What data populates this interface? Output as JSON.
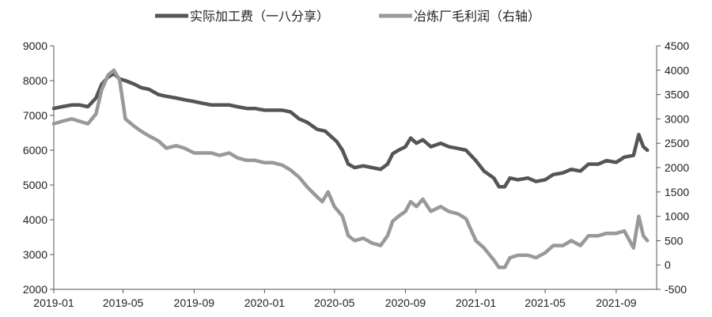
{
  "chart_data": {
    "type": "line",
    "title": "",
    "xlabel": "",
    "ylabel": "",
    "y_left_lim": [
      2000,
      9000
    ],
    "y_right_lim": [
      -500,
      4500
    ],
    "y_left_ticks": [
      "9000",
      "8000",
      "7000",
      "6000",
      "5000",
      "4000",
      "3000",
      "2000"
    ],
    "y_right_ticks": [
      "4500",
      "4000",
      "3500",
      "3000",
      "2500",
      "2000",
      "1500",
      "1000",
      "500",
      "0",
      "-500"
    ],
    "x_ticks": [
      "2019-01",
      "2019-05",
      "2019-09",
      "2020-01",
      "2020-05",
      "2020-09",
      "2021-01",
      "2021-05",
      "2021-09"
    ],
    "legend_position": "top",
    "grid": false,
    "series": [
      {
        "name": "实际加工费（一八分享）",
        "axis": "left",
        "color": "#555555",
        "points": [
          [
            "2019-01-01",
            7200
          ],
          [
            "2019-01-15",
            7250
          ],
          [
            "2019-02-01",
            7300
          ],
          [
            "2019-02-15",
            7300
          ],
          [
            "2019-03-01",
            7250
          ],
          [
            "2019-03-15",
            7500
          ],
          [
            "2019-03-25",
            7900
          ],
          [
            "2019-04-05",
            8100
          ],
          [
            "2019-04-15",
            8200
          ],
          [
            "2019-04-25",
            8050
          ],
          [
            "2019-05-05",
            8000
          ],
          [
            "2019-05-20",
            7900
          ],
          [
            "2019-06-01",
            7800
          ],
          [
            "2019-06-15",
            7750
          ],
          [
            "2019-07-01",
            7600
          ],
          [
            "2019-07-15",
            7550
          ],
          [
            "2019-08-01",
            7500
          ],
          [
            "2019-08-15",
            7450
          ],
          [
            "2019-09-01",
            7400
          ],
          [
            "2019-09-15",
            7350
          ],
          [
            "2019-10-01",
            7300
          ],
          [
            "2019-10-15",
            7300
          ],
          [
            "2019-11-01",
            7300
          ],
          [
            "2019-11-15",
            7250
          ],
          [
            "2019-12-01",
            7200
          ],
          [
            "2019-12-15",
            7200
          ],
          [
            "2020-01-01",
            7150
          ],
          [
            "2020-01-15",
            7150
          ],
          [
            "2020-02-01",
            7150
          ],
          [
            "2020-02-15",
            7100
          ],
          [
            "2020-03-01",
            6900
          ],
          [
            "2020-03-15",
            6800
          ],
          [
            "2020-04-01",
            6600
          ],
          [
            "2020-04-15",
            6550
          ],
          [
            "2020-04-25",
            6400
          ],
          [
            "2020-05-05",
            6250
          ],
          [
            "2020-05-15",
            6000
          ],
          [
            "2020-05-25",
            5600
          ],
          [
            "2020-06-05",
            5500
          ],
          [
            "2020-06-20",
            5550
          ],
          [
            "2020-07-05",
            5500
          ],
          [
            "2020-07-20",
            5450
          ],
          [
            "2020-08-01",
            5600
          ],
          [
            "2020-08-10",
            5900
          ],
          [
            "2020-08-20",
            6000
          ],
          [
            "2020-09-01",
            6100
          ],
          [
            "2020-09-10",
            6350
          ],
          [
            "2020-09-20",
            6200
          ],
          [
            "2020-10-01",
            6300
          ],
          [
            "2020-10-15",
            6100
          ],
          [
            "2020-11-01",
            6200
          ],
          [
            "2020-11-15",
            6100
          ],
          [
            "2020-12-01",
            6050
          ],
          [
            "2020-12-15",
            6000
          ],
          [
            "2021-01-01",
            5700
          ],
          [
            "2021-01-15",
            5400
          ],
          [
            "2021-02-01",
            5200
          ],
          [
            "2021-02-10",
            4950
          ],
          [
            "2021-02-20",
            4950
          ],
          [
            "2021-03-01",
            5200
          ],
          [
            "2021-03-15",
            5150
          ],
          [
            "2021-04-01",
            5200
          ],
          [
            "2021-04-15",
            5100
          ],
          [
            "2021-05-01",
            5150
          ],
          [
            "2021-05-15",
            5300
          ],
          [
            "2021-06-01",
            5350
          ],
          [
            "2021-06-15",
            5450
          ],
          [
            "2021-07-01",
            5400
          ],
          [
            "2021-07-15",
            5600
          ],
          [
            "2021-08-01",
            5600
          ],
          [
            "2021-08-15",
            5700
          ],
          [
            "2021-09-01",
            5650
          ],
          [
            "2021-09-15",
            5800
          ],
          [
            "2021-10-01",
            5850
          ],
          [
            "2021-10-10",
            6450
          ],
          [
            "2021-10-18",
            6100
          ],
          [
            "2021-10-25",
            6000
          ]
        ]
      },
      {
        "name": "冶炼厂毛利润（右轴）",
        "axis": "right",
        "color": "#999999",
        "points": [
          [
            "2019-01-01",
            2900
          ],
          [
            "2019-01-15",
            2950
          ],
          [
            "2019-02-01",
            3000
          ],
          [
            "2019-02-15",
            2950
          ],
          [
            "2019-03-01",
            2900
          ],
          [
            "2019-03-15",
            3100
          ],
          [
            "2019-03-25",
            3600
          ],
          [
            "2019-04-05",
            3900
          ],
          [
            "2019-04-15",
            4000
          ],
          [
            "2019-04-25",
            3800
          ],
          [
            "2019-05-05",
            3000
          ],
          [
            "2019-05-20",
            2850
          ],
          [
            "2019-06-01",
            2750
          ],
          [
            "2019-06-15",
            2650
          ],
          [
            "2019-07-01",
            2550
          ],
          [
            "2019-07-15",
            2400
          ],
          [
            "2019-08-01",
            2450
          ],
          [
            "2019-08-15",
            2400
          ],
          [
            "2019-09-01",
            2300
          ],
          [
            "2019-09-15",
            2300
          ],
          [
            "2019-10-01",
            2300
          ],
          [
            "2019-10-15",
            2250
          ],
          [
            "2019-11-01",
            2300
          ],
          [
            "2019-11-15",
            2200
          ],
          [
            "2019-12-01",
            2150
          ],
          [
            "2019-12-15",
            2150
          ],
          [
            "2020-01-01",
            2100
          ],
          [
            "2020-01-15",
            2100
          ],
          [
            "2020-02-01",
            2050
          ],
          [
            "2020-02-15",
            1950
          ],
          [
            "2020-03-01",
            1800
          ],
          [
            "2020-03-15",
            1600
          ],
          [
            "2020-04-01",
            1400
          ],
          [
            "2020-04-10",
            1300
          ],
          [
            "2020-04-20",
            1500
          ],
          [
            "2020-05-01",
            1200
          ],
          [
            "2020-05-15",
            1000
          ],
          [
            "2020-05-25",
            600
          ],
          [
            "2020-06-05",
            500
          ],
          [
            "2020-06-20",
            550
          ],
          [
            "2020-07-05",
            450
          ],
          [
            "2020-07-20",
            400
          ],
          [
            "2020-08-01",
            600
          ],
          [
            "2020-08-10",
            900
          ],
          [
            "2020-08-20",
            1000
          ],
          [
            "2020-09-01",
            1100
          ],
          [
            "2020-09-10",
            1300
          ],
          [
            "2020-09-20",
            1200
          ],
          [
            "2020-10-01",
            1350
          ],
          [
            "2020-10-15",
            1100
          ],
          [
            "2020-11-01",
            1200
          ],
          [
            "2020-11-15",
            1100
          ],
          [
            "2020-12-01",
            1050
          ],
          [
            "2020-12-15",
            950
          ],
          [
            "2021-01-01",
            500
          ],
          [
            "2021-01-15",
            350
          ],
          [
            "2021-02-01",
            100
          ],
          [
            "2021-02-10",
            -50
          ],
          [
            "2021-02-20",
            -50
          ],
          [
            "2021-03-01",
            150
          ],
          [
            "2021-03-15",
            200
          ],
          [
            "2021-04-01",
            200
          ],
          [
            "2021-04-15",
            150
          ],
          [
            "2021-05-01",
            250
          ],
          [
            "2021-05-15",
            400
          ],
          [
            "2021-06-01",
            400
          ],
          [
            "2021-06-15",
            500
          ],
          [
            "2021-07-01",
            400
          ],
          [
            "2021-07-15",
            600
          ],
          [
            "2021-08-01",
            600
          ],
          [
            "2021-08-15",
            650
          ],
          [
            "2021-09-01",
            650
          ],
          [
            "2021-09-15",
            700
          ],
          [
            "2021-10-01",
            350
          ],
          [
            "2021-10-10",
            1000
          ],
          [
            "2021-10-18",
            600
          ],
          [
            "2021-10-25",
            500
          ]
        ]
      }
    ]
  }
}
